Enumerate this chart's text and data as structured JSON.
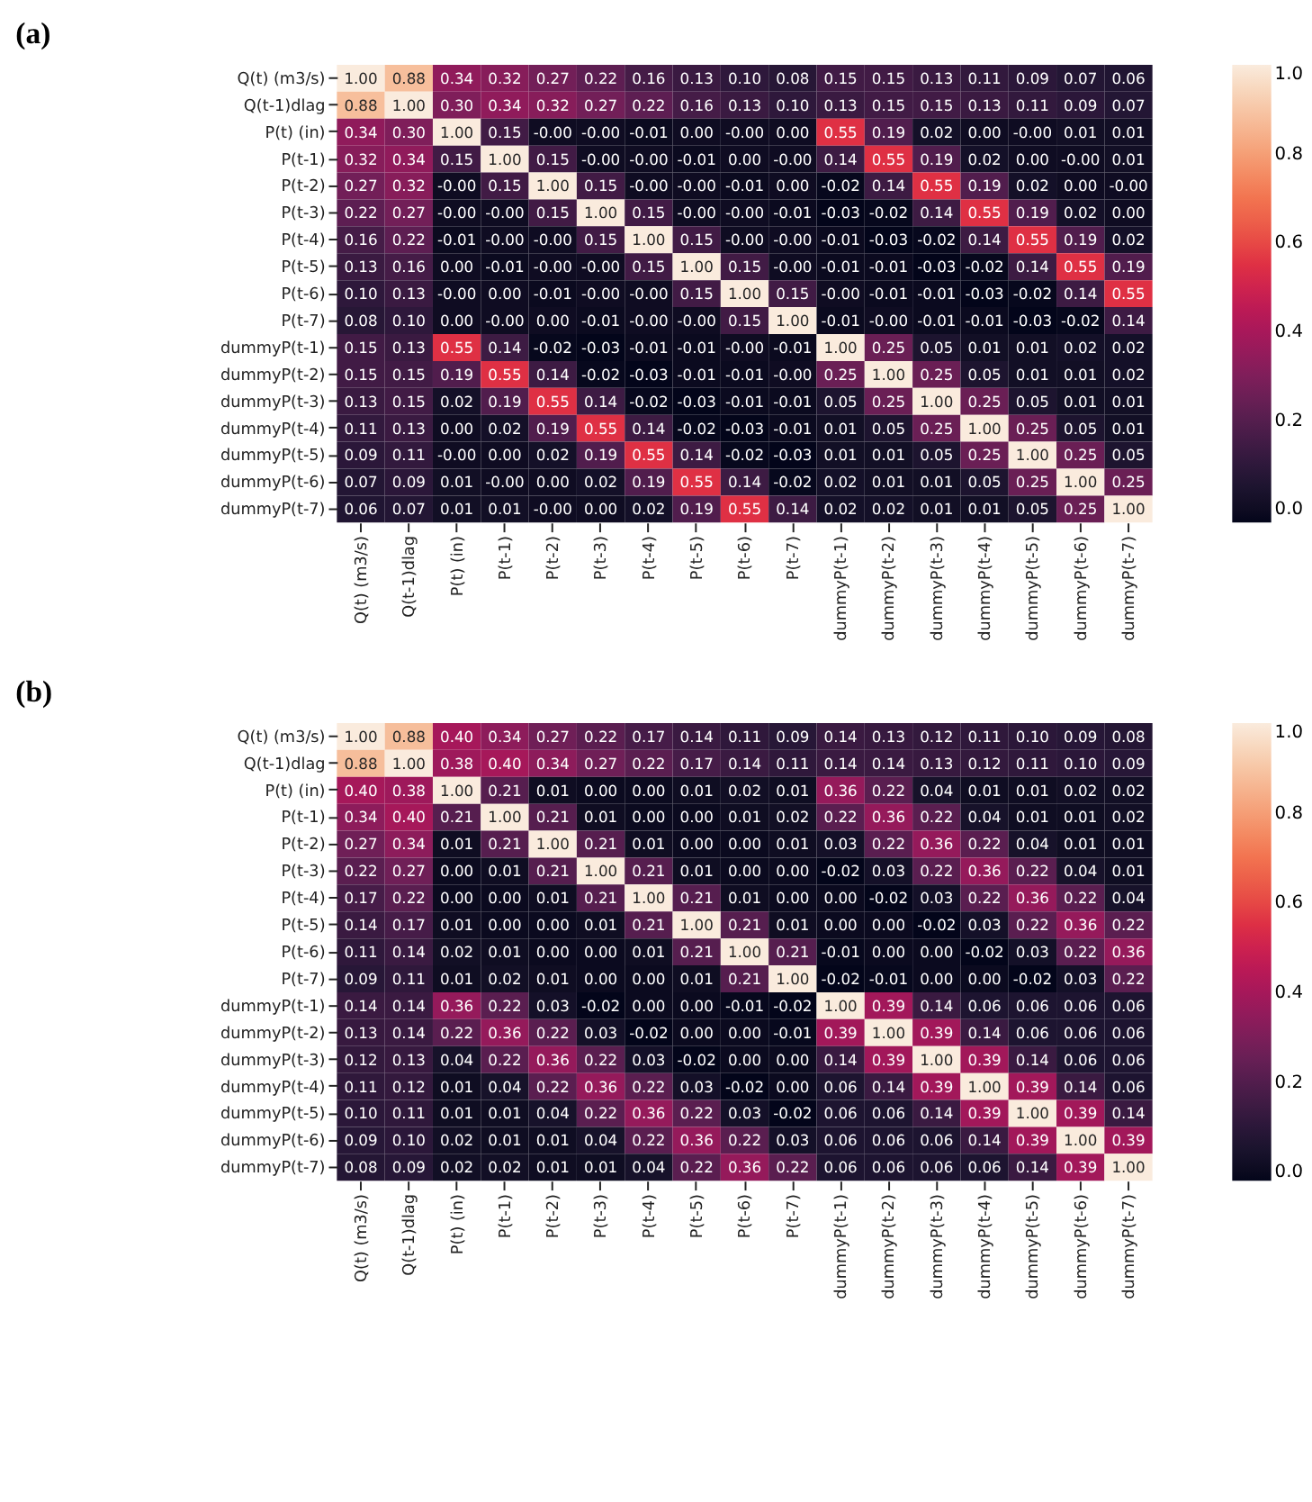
{
  "chart_data": [
    {
      "type": "heatmap",
      "title": "(a)",
      "categories": [
        "Q(t) (m3/s)",
        "Q(t-1)dlag",
        "P(t) (in)",
        "P(t-1)",
        "P(t-2)",
        "P(t-3)",
        "P(t-4)",
        "P(t-5)",
        "P(t-6)",
        "P(t-7)",
        "dummyP(t-1)",
        "dummyP(t-2)",
        "dummyP(t-3)",
        "dummyP(t-4)",
        "dummyP(t-5)",
        "dummyP(t-6)",
        "dummyP(t-7)"
      ],
      "y_categories": [
        "Q(t) (m3/s)",
        "Q(t-1)dlag",
        "P(t) (in)",
        "P(t-1)",
        "P(t-2)",
        "P(t-3)",
        "P(t-4)",
        "P(t-5)",
        "P(t-6)",
        "P(t-7)",
        "dummyP(t-1)",
        "dummyP(t-2)",
        "dummyP(t-3)",
        "dummyP(t-4)",
        "dummyP(t-5)",
        "dummyP(t-6)",
        "dummyP(t-7)"
      ],
      "cells": [
        [
          1.0,
          0.88,
          0.34,
          0.32,
          0.27,
          0.22,
          0.16,
          0.13,
          0.1,
          0.08,
          0.15,
          0.15,
          0.13,
          0.11,
          0.09,
          0.07,
          0.06
        ],
        [
          0.88,
          1.0,
          0.3,
          0.34,
          0.32,
          0.27,
          0.22,
          0.16,
          0.13,
          0.1,
          0.13,
          0.15,
          0.15,
          0.13,
          0.11,
          0.09,
          0.07
        ],
        [
          0.34,
          0.3,
          1.0,
          0.15,
          0,
          0,
          -0.01,
          0.0,
          0,
          0.0,
          0.55,
          0.19,
          0.02,
          0.0,
          0,
          0.01,
          0.01
        ],
        [
          0.32,
          0.34,
          0.15,
          1.0,
          0.15,
          0,
          0,
          -0.01,
          0.0,
          0,
          0.14,
          0.55,
          0.19,
          0.02,
          0.0,
          0,
          0.01
        ],
        [
          0.27,
          0.32,
          0,
          0.15,
          1.0,
          0.15,
          0,
          0,
          -0.01,
          0.0,
          -0.02,
          0.14,
          0.55,
          0.19,
          0.02,
          0.0,
          0
        ],
        [
          0.22,
          0.27,
          0,
          0,
          0.15,
          1.0,
          0.15,
          0,
          0,
          -0.01,
          -0.03,
          -0.02,
          0.14,
          0.55,
          0.19,
          0.02,
          0.0
        ],
        [
          0.16,
          0.22,
          -0.01,
          0,
          0,
          0.15,
          1.0,
          0.15,
          0,
          0,
          -0.01,
          -0.03,
          -0.02,
          0.14,
          0.55,
          0.19,
          0.02
        ],
        [
          0.13,
          0.16,
          0.0,
          -0.01,
          0,
          0,
          0.15,
          1.0,
          0.15,
          0,
          -0.01,
          -0.01,
          -0.03,
          -0.02,
          0.14,
          0.55,
          0.19
        ],
        [
          0.1,
          0.13,
          0,
          0.0,
          -0.01,
          0,
          0,
          0.15,
          1.0,
          0.15,
          0,
          -0.01,
          -0.01,
          -0.03,
          -0.02,
          0.14,
          0.55
        ],
        [
          0.08,
          0.1,
          0.0,
          0,
          0.0,
          -0.01,
          0,
          0,
          0.15,
          1.0,
          -0.01,
          0,
          -0.01,
          -0.01,
          -0.03,
          -0.02,
          0.14
        ],
        [
          0.15,
          0.13,
          0.55,
          0.14,
          -0.02,
          -0.03,
          -0.01,
          -0.01,
          0,
          -0.01,
          1.0,
          0.25,
          0.05,
          0.01,
          0.01,
          0.02,
          0.02
        ],
        [
          0.15,
          0.15,
          0.19,
          0.55,
          0.14,
          -0.02,
          -0.03,
          -0.01,
          -0.01,
          0,
          0.25,
          1.0,
          0.25,
          0.05,
          0.01,
          0.01,
          0.02
        ],
        [
          0.13,
          0.15,
          0.02,
          0.19,
          0.55,
          0.14,
          -0.02,
          -0.03,
          -0.01,
          -0.01,
          0.05,
          0.25,
          1.0,
          0.25,
          0.05,
          0.01,
          0.01
        ],
        [
          0.11,
          0.13,
          0.0,
          0.02,
          0.19,
          0.55,
          0.14,
          -0.02,
          -0.03,
          -0.01,
          0.01,
          0.05,
          0.25,
          1.0,
          0.25,
          0.05,
          0.01
        ],
        [
          0.09,
          0.11,
          0,
          0.0,
          0.02,
          0.19,
          0.55,
          0.14,
          -0.02,
          -0.03,
          0.01,
          0.01,
          0.05,
          0.25,
          1.0,
          0.25,
          0.05
        ],
        [
          0.07,
          0.09,
          0.01,
          0,
          0.0,
          0.02,
          0.19,
          0.55,
          0.14,
          -0.02,
          0.02,
          0.01,
          0.01,
          0.05,
          0.25,
          1.0,
          0.25
        ],
        [
          0.06,
          0.07,
          0.01,
          0.01,
          0,
          0.0,
          0.02,
          0.19,
          0.55,
          0.14,
          0.02,
          0.02,
          0.01,
          0.01,
          0.05,
          0.25,
          1.0
        ]
      ],
      "cell_labels": [
        [
          "1.00",
          "0.88",
          "0.34",
          "0.32",
          "0.27",
          "0.22",
          "0.16",
          "0.13",
          "0.10",
          "0.08",
          "0.15",
          "0.15",
          "0.13",
          "0.11",
          "0.09",
          "0.07",
          "0.06"
        ],
        [
          "0.88",
          "1.00",
          "0.30",
          "0.34",
          "0.32",
          "0.27",
          "0.22",
          "0.16",
          "0.13",
          "0.10",
          "0.13",
          "0.15",
          "0.15",
          "0.13",
          "0.11",
          "0.09",
          "0.07"
        ],
        [
          "0.34",
          "0.30",
          "1.00",
          "0.15",
          "-0.00",
          "-0.00",
          "-0.01",
          "0.00",
          "-0.00",
          "0.00",
          "0.55",
          "0.19",
          "0.02",
          "0.00",
          "-0.00",
          "0.01",
          "0.01"
        ],
        [
          "0.32",
          "0.34",
          "0.15",
          "1.00",
          "0.15",
          "-0.00",
          "-0.00",
          "-0.01",
          "0.00",
          "-0.00",
          "0.14",
          "0.55",
          "0.19",
          "0.02",
          "0.00",
          "-0.00",
          "0.01"
        ],
        [
          "0.27",
          "0.32",
          "-0.00",
          "0.15",
          "1.00",
          "0.15",
          "-0.00",
          "-0.00",
          "-0.01",
          "0.00",
          "-0.02",
          "0.14",
          "0.55",
          "0.19",
          "0.02",
          "0.00",
          "-0.00"
        ],
        [
          "0.22",
          "0.27",
          "-0.00",
          "-0.00",
          "0.15",
          "1.00",
          "0.15",
          "-0.00",
          "-0.00",
          "-0.01",
          "-0.03",
          "-0.02",
          "0.14",
          "0.55",
          "0.19",
          "0.02",
          "0.00"
        ],
        [
          "0.16",
          "0.22",
          "-0.01",
          "-0.00",
          "-0.00",
          "0.15",
          "1.00",
          "0.15",
          "-0.00",
          "-0.00",
          "-0.01",
          "-0.03",
          "-0.02",
          "0.14",
          "0.55",
          "0.19",
          "0.02"
        ],
        [
          "0.13",
          "0.16",
          "0.00",
          "-0.01",
          "-0.00",
          "-0.00",
          "0.15",
          "1.00",
          "0.15",
          "-0.00",
          "-0.01",
          "-0.01",
          "-0.03",
          "-0.02",
          "0.14",
          "0.55",
          "0.19"
        ],
        [
          "0.10",
          "0.13",
          "-0.00",
          "0.00",
          "-0.01",
          "-0.00",
          "-0.00",
          "0.15",
          "1.00",
          "0.15",
          "-0.00",
          "-0.01",
          "-0.01",
          "-0.03",
          "-0.02",
          "0.14",
          "0.55"
        ],
        [
          "0.08",
          "0.10",
          "0.00",
          "-0.00",
          "0.00",
          "-0.01",
          "-0.00",
          "-0.00",
          "0.15",
          "1.00",
          "-0.01",
          "-0.00",
          "-0.01",
          "-0.01",
          "-0.03",
          "-0.02",
          "0.14"
        ],
        [
          "0.15",
          "0.13",
          "0.55",
          "0.14",
          "-0.02",
          "-0.03",
          "-0.01",
          "-0.01",
          "-0.00",
          "-0.01",
          "1.00",
          "0.25",
          "0.05",
          "0.01",
          "0.01",
          "0.02",
          "0.02"
        ],
        [
          "0.15",
          "0.15",
          "0.19",
          "0.55",
          "0.14",
          "-0.02",
          "-0.03",
          "-0.01",
          "-0.01",
          "-0.00",
          "0.25",
          "1.00",
          "0.25",
          "0.05",
          "0.01",
          "0.01",
          "0.02"
        ],
        [
          "0.13",
          "0.15",
          "0.02",
          "0.19",
          "0.55",
          "0.14",
          "-0.02",
          "-0.03",
          "-0.01",
          "-0.01",
          "0.05",
          "0.25",
          "1.00",
          "0.25",
          "0.05",
          "0.01",
          "0.01"
        ],
        [
          "0.11",
          "0.13",
          "0.00",
          "0.02",
          "0.19",
          "0.55",
          "0.14",
          "-0.02",
          "-0.03",
          "-0.01",
          "0.01",
          "0.05",
          "0.25",
          "1.00",
          "0.25",
          "0.05",
          "0.01"
        ],
        [
          "0.09",
          "0.11",
          "-0.00",
          "0.00",
          "0.02",
          "0.19",
          "0.55",
          "0.14",
          "-0.02",
          "-0.03",
          "0.01",
          "0.01",
          "0.05",
          "0.25",
          "1.00",
          "0.25",
          "0.05"
        ],
        [
          "0.07",
          "0.09",
          "0.01",
          "-0.00",
          "0.00",
          "0.02",
          "0.19",
          "0.55",
          "0.14",
          "-0.02",
          "0.02",
          "0.01",
          "0.01",
          "0.05",
          "0.25",
          "1.00",
          "0.25"
        ],
        [
          "0.06",
          "0.07",
          "0.01",
          "0.01",
          "-0.00",
          "0.00",
          "0.02",
          "0.19",
          "0.55",
          "0.14",
          "0.02",
          "0.02",
          "0.01",
          "0.01",
          "0.05",
          "0.25",
          "1.00"
        ]
      ],
      "clim": [
        -0.03,
        1.0
      ],
      "cticks": [
        {
          "value": 0,
          "label": "0.0"
        },
        {
          "value": 0.2,
          "label": "0.2"
        },
        {
          "value": 0.4,
          "label": "0.4"
        },
        {
          "value": 0.6,
          "label": "0.6"
        },
        {
          "value": 0.8,
          "label": "0.8"
        },
        {
          "value": 1.0,
          "label": "1.0"
        }
      ]
    },
    {
      "type": "heatmap",
      "title": "(b)",
      "categories": [
        "Q(t) (m3/s)",
        "Q(t-1)dlag",
        "P(t) (in)",
        "P(t-1)",
        "P(t-2)",
        "P(t-3)",
        "P(t-4)",
        "P(t-5)",
        "P(t-6)",
        "P(t-7)",
        "dummyP(t-1)",
        "dummyP(t-2)",
        "dummyP(t-3)",
        "dummyP(t-4)",
        "dummyP(t-5)",
        "dummyP(t-6)",
        "dummyP(t-7)"
      ],
      "y_categories": [
        "Q(t) (m3/s)",
        "Q(t-1)dlag",
        "P(t) (in)",
        "P(t-1)",
        "P(t-2)",
        "P(t-3)",
        "P(t-4)",
        "P(t-5)",
        "P(t-6)",
        "P(t-7)",
        "dummyP(t-1)",
        "dummyP(t-2)",
        "dummyP(t-3)",
        "dummyP(t-4)",
        "dummyP(t-5)",
        "dummyP(t-6)",
        "dummyP(t-7)"
      ],
      "cells": [
        [
          1.0,
          0.88,
          0.4,
          0.34,
          0.27,
          0.22,
          0.17,
          0.14,
          0.11,
          0.09,
          0.14,
          0.13,
          0.12,
          0.11,
          0.1,
          0.09,
          0.08
        ],
        [
          0.88,
          1.0,
          0.38,
          0.4,
          0.34,
          0.27,
          0.22,
          0.17,
          0.14,
          0.11,
          0.14,
          0.14,
          0.13,
          0.12,
          0.11,
          0.1,
          0.09
        ],
        [
          0.4,
          0.38,
          1.0,
          0.21,
          0.01,
          0.0,
          0.0,
          0.01,
          0.02,
          0.01,
          0.36,
          0.22,
          0.04,
          0.01,
          0.01,
          0.02,
          0.02
        ],
        [
          0.34,
          0.4,
          0.21,
          1.0,
          0.21,
          0.01,
          0.0,
          0.0,
          0.01,
          0.02,
          0.22,
          0.36,
          0.22,
          0.04,
          0.01,
          0.01,
          0.02
        ],
        [
          0.27,
          0.34,
          0.01,
          0.21,
          1.0,
          0.21,
          0.01,
          0.0,
          0.0,
          0.01,
          0.03,
          0.22,
          0.36,
          0.22,
          0.04,
          0.01,
          0.01
        ],
        [
          0.22,
          0.27,
          0.0,
          0.01,
          0.21,
          1.0,
          0.21,
          0.01,
          0.0,
          0.0,
          -0.02,
          0.03,
          0.22,
          0.36,
          0.22,
          0.04,
          0.01
        ],
        [
          0.17,
          0.22,
          0.0,
          0.0,
          0.01,
          0.21,
          1.0,
          0.21,
          0.01,
          0.0,
          0.0,
          -0.02,
          0.03,
          0.22,
          0.36,
          0.22,
          0.04
        ],
        [
          0.14,
          0.17,
          0.01,
          0.0,
          0.0,
          0.01,
          0.21,
          1.0,
          0.21,
          0.01,
          0.0,
          0.0,
          -0.02,
          0.03,
          0.22,
          0.36,
          0.22
        ],
        [
          0.11,
          0.14,
          0.02,
          0.01,
          0.0,
          0.0,
          0.01,
          0.21,
          1.0,
          0.21,
          -0.01,
          0.0,
          0.0,
          -0.02,
          0.03,
          0.22,
          0.36
        ],
        [
          0.09,
          0.11,
          0.01,
          0.02,
          0.01,
          0.0,
          0.0,
          0.01,
          0.21,
          1.0,
          -0.02,
          -0.01,
          0.0,
          0.0,
          -0.02,
          0.03,
          0.22
        ],
        [
          0.14,
          0.14,
          0.36,
          0.22,
          0.03,
          -0.02,
          0.0,
          0.0,
          -0.01,
          -0.02,
          1.0,
          0.39,
          0.14,
          0.06,
          0.06,
          0.06,
          0.06
        ],
        [
          0.13,
          0.14,
          0.22,
          0.36,
          0.22,
          0.03,
          -0.02,
          0.0,
          0.0,
          -0.01,
          0.39,
          1.0,
          0.39,
          0.14,
          0.06,
          0.06,
          0.06
        ],
        [
          0.12,
          0.13,
          0.04,
          0.22,
          0.36,
          0.22,
          0.03,
          -0.02,
          0.0,
          0.0,
          0.14,
          0.39,
          1.0,
          0.39,
          0.14,
          0.06,
          0.06
        ],
        [
          0.11,
          0.12,
          0.01,
          0.04,
          0.22,
          0.36,
          0.22,
          0.03,
          -0.02,
          0.0,
          0.06,
          0.14,
          0.39,
          1.0,
          0.39,
          0.14,
          0.06
        ],
        [
          0.1,
          0.11,
          0.01,
          0.01,
          0.04,
          0.22,
          0.36,
          0.22,
          0.03,
          -0.02,
          0.06,
          0.06,
          0.14,
          0.39,
          1.0,
          0.39,
          0.14
        ],
        [
          0.09,
          0.1,
          0.02,
          0.01,
          0.01,
          0.04,
          0.22,
          0.36,
          0.22,
          0.03,
          0.06,
          0.06,
          0.06,
          0.14,
          0.39,
          1.0,
          0.39
        ],
        [
          0.08,
          0.09,
          0.02,
          0.02,
          0.01,
          0.01,
          0.04,
          0.22,
          0.36,
          0.22,
          0.06,
          0.06,
          0.06,
          0.06,
          0.14,
          0.39,
          1.0
        ]
      ],
      "cell_labels": [
        [
          "1.00",
          "0.88",
          "0.40",
          "0.34",
          "0.27",
          "0.22",
          "0.17",
          "0.14",
          "0.11",
          "0.09",
          "0.14",
          "0.13",
          "0.12",
          "0.11",
          "0.10",
          "0.09",
          "0.08"
        ],
        [
          "0.88",
          "1.00",
          "0.38",
          "0.40",
          "0.34",
          "0.27",
          "0.22",
          "0.17",
          "0.14",
          "0.11",
          "0.14",
          "0.14",
          "0.13",
          "0.12",
          "0.11",
          "0.10",
          "0.09"
        ],
        [
          "0.40",
          "0.38",
          "1.00",
          "0.21",
          "0.01",
          "0.00",
          "0.00",
          "0.01",
          "0.02",
          "0.01",
          "0.36",
          "0.22",
          "0.04",
          "0.01",
          "0.01",
          "0.02",
          "0.02"
        ],
        [
          "0.34",
          "0.40",
          "0.21",
          "1.00",
          "0.21",
          "0.01",
          "0.00",
          "0.00",
          "0.01",
          "0.02",
          "0.22",
          "0.36",
          "0.22",
          "0.04",
          "0.01",
          "0.01",
          "0.02"
        ],
        [
          "0.27",
          "0.34",
          "0.01",
          "0.21",
          "1.00",
          "0.21",
          "0.01",
          "0.00",
          "0.00",
          "0.01",
          "0.03",
          "0.22",
          "0.36",
          "0.22",
          "0.04",
          "0.01",
          "0.01"
        ],
        [
          "0.22",
          "0.27",
          "0.00",
          "0.01",
          "0.21",
          "1.00",
          "0.21",
          "0.01",
          "0.00",
          "0.00",
          "-0.02",
          "0.03",
          "0.22",
          "0.36",
          "0.22",
          "0.04",
          "0.01"
        ],
        [
          "0.17",
          "0.22",
          "0.00",
          "0.00",
          "0.01",
          "0.21",
          "1.00",
          "0.21",
          "0.01",
          "0.00",
          "0.00",
          "-0.02",
          "0.03",
          "0.22",
          "0.36",
          "0.22",
          "0.04"
        ],
        [
          "0.14",
          "0.17",
          "0.01",
          "0.00",
          "0.00",
          "0.01",
          "0.21",
          "1.00",
          "0.21",
          "0.01",
          "0.00",
          "0.00",
          "-0.02",
          "0.03",
          "0.22",
          "0.36",
          "0.22"
        ],
        [
          "0.11",
          "0.14",
          "0.02",
          "0.01",
          "0.00",
          "0.00",
          "0.01",
          "0.21",
          "1.00",
          "0.21",
          "-0.01",
          "0.00",
          "0.00",
          "-0.02",
          "0.03",
          "0.22",
          "0.36"
        ],
        [
          "0.09",
          "0.11",
          "0.01",
          "0.02",
          "0.01",
          "0.00",
          "0.00",
          "0.01",
          "0.21",
          "1.00",
          "-0.02",
          "-0.01",
          "0.00",
          "0.00",
          "-0.02",
          "0.03",
          "0.22"
        ],
        [
          "0.14",
          "0.14",
          "0.36",
          "0.22",
          "0.03",
          "-0.02",
          "0.00",
          "0.00",
          "-0.01",
          "-0.02",
          "1.00",
          "0.39",
          "0.14",
          "0.06",
          "0.06",
          "0.06",
          "0.06"
        ],
        [
          "0.13",
          "0.14",
          "0.22",
          "0.36",
          "0.22",
          "0.03",
          "-0.02",
          "0.00",
          "0.00",
          "-0.01",
          "0.39",
          "1.00",
          "0.39",
          "0.14",
          "0.06",
          "0.06",
          "0.06"
        ],
        [
          "0.12",
          "0.13",
          "0.04",
          "0.22",
          "0.36",
          "0.22",
          "0.03",
          "-0.02",
          "0.00",
          "0.00",
          "0.14",
          "0.39",
          "1.00",
          "0.39",
          "0.14",
          "0.06",
          "0.06"
        ],
        [
          "0.11",
          "0.12",
          "0.01",
          "0.04",
          "0.22",
          "0.36",
          "0.22",
          "0.03",
          "-0.02",
          "0.00",
          "0.06",
          "0.14",
          "0.39",
          "1.00",
          "0.39",
          "0.14",
          "0.06"
        ],
        [
          "0.10",
          "0.11",
          "0.01",
          "0.01",
          "0.04",
          "0.22",
          "0.36",
          "0.22",
          "0.03",
          "-0.02",
          "0.06",
          "0.06",
          "0.14",
          "0.39",
          "1.00",
          "0.39",
          "0.14"
        ],
        [
          "0.09",
          "0.10",
          "0.02",
          "0.01",
          "0.01",
          "0.04",
          "0.22",
          "0.36",
          "0.22",
          "0.03",
          "0.06",
          "0.06",
          "0.06",
          "0.14",
          "0.39",
          "1.00",
          "0.39"
        ],
        [
          "0.08",
          "0.09",
          "0.02",
          "0.02",
          "0.01",
          "0.01",
          "0.04",
          "0.22",
          "0.36",
          "0.22",
          "0.06",
          "0.06",
          "0.06",
          "0.06",
          "0.14",
          "0.39",
          "1.00"
        ]
      ],
      "clim": [
        -0.02,
        1.0
      ],
      "cticks": [
        {
          "value": 0,
          "label": "0.0"
        },
        {
          "value": 0.2,
          "label": "0.2"
        },
        {
          "value": 0.4,
          "label": "0.4"
        },
        {
          "value": 0.6,
          "label": "0.6"
        },
        {
          "value": 0.8,
          "label": "0.8"
        },
        {
          "value": 1.0,
          "label": "1.0"
        }
      ]
    }
  ]
}
